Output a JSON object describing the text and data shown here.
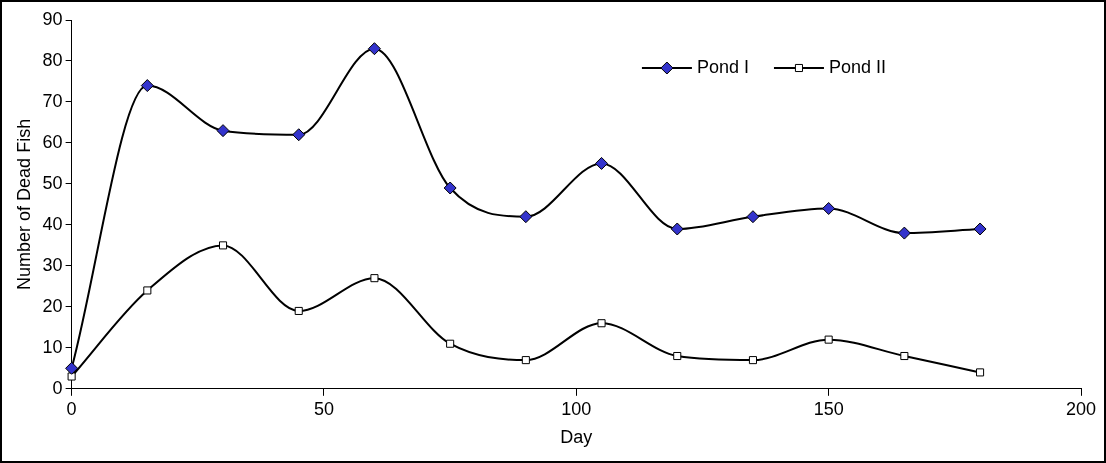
{
  "chart_data": {
    "type": "line",
    "xlabel": "Day",
    "ylabel": "Number of Dead Fish",
    "x": [
      0,
      15,
      30,
      45,
      60,
      75,
      90,
      105,
      120,
      135,
      150,
      165,
      180
    ],
    "series": [
      {
        "name": "Pond I",
        "color": "#3333cc",
        "marker": "diamond",
        "values": [
          5,
          74,
          63,
          62,
          83,
          49,
          42,
          55,
          39,
          42,
          44,
          38,
          39
        ]
      },
      {
        "name": "Pond II",
        "color": "#ffffff",
        "marker": "square",
        "values": [
          3,
          24,
          35,
          19,
          27,
          11,
          7,
          16,
          8,
          7,
          12,
          8,
          4
        ]
      }
    ],
    "xlim": [
      0,
      200
    ],
    "xticks": [
      0,
      50,
      100,
      150,
      200
    ],
    "ylim": [
      0,
      90
    ],
    "yticks": [
      0,
      10,
      20,
      30,
      40,
      50,
      60,
      70,
      80,
      90
    ],
    "grid": false,
    "legend": "top right"
  }
}
